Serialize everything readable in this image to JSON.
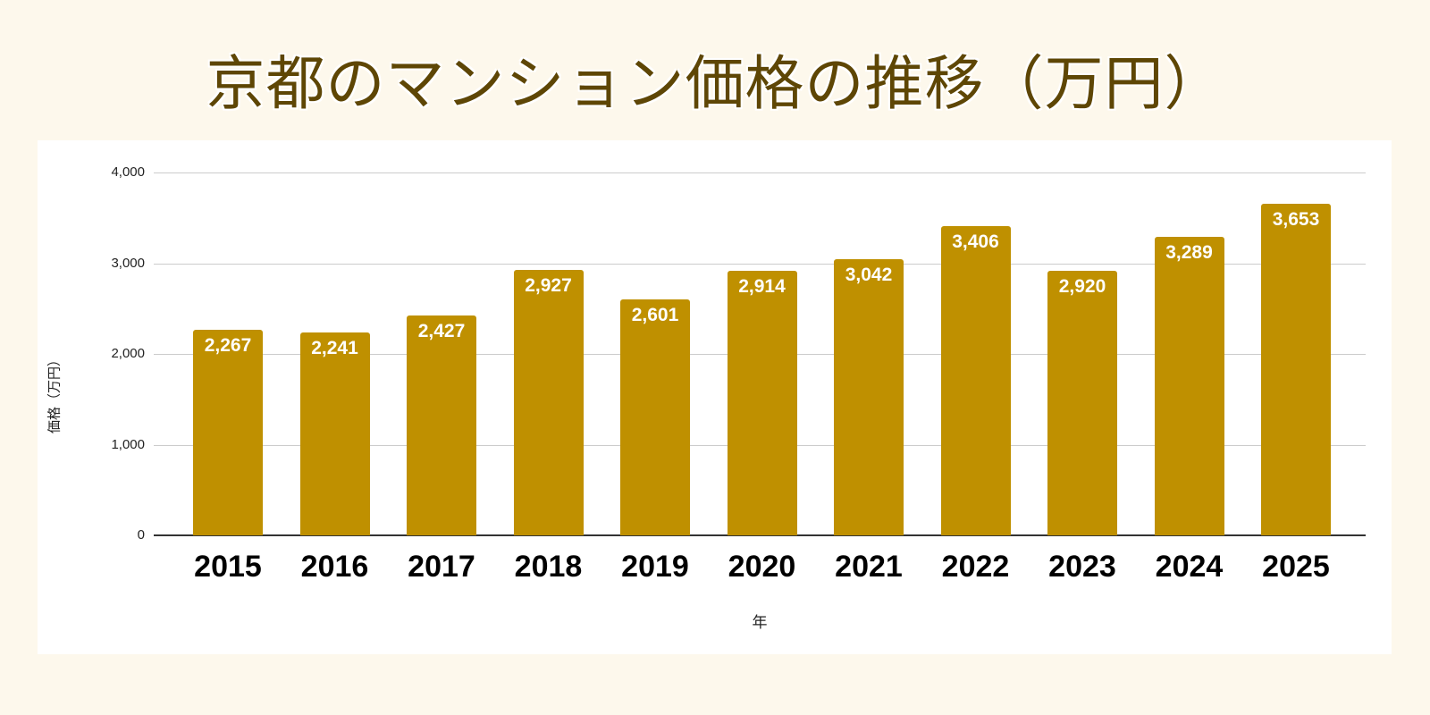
{
  "title": "京都のマンション価格の推移（万円）",
  "colors": {
    "background": "#FDF8EC",
    "card": "#FFFFFF",
    "bar": "#BF9000",
    "title": "#5E4605",
    "gridline": "#CCCCCC"
  },
  "axes": {
    "ylabel": "価格（万円）",
    "xlabel": "年",
    "yticks": [
      "0",
      "1,000",
      "2,000",
      "3,000",
      "4,000"
    ]
  },
  "bars": [
    {
      "year": "2015",
      "label": "2,267"
    },
    {
      "year": "2016",
      "label": "2,241"
    },
    {
      "year": "2017",
      "label": "2,427"
    },
    {
      "year": "2018",
      "label": "2,927"
    },
    {
      "year": "2019",
      "label": "2,601"
    },
    {
      "year": "2020",
      "label": "2,914"
    },
    {
      "year": "2021",
      "label": "3,042"
    },
    {
      "year": "2022",
      "label": "3,406"
    },
    {
      "year": "2023",
      "label": "2,920"
    },
    {
      "year": "2024",
      "label": "3,289"
    },
    {
      "year": "2025",
      "label": "3,653"
    }
  ],
  "chart_data": {
    "type": "bar",
    "title": "京都のマンション価格の推移（万円）",
    "xlabel": "年",
    "ylabel": "価格（万円）",
    "categories": [
      "2015",
      "2016",
      "2017",
      "2018",
      "2019",
      "2020",
      "2021",
      "2022",
      "2023",
      "2024",
      "2025"
    ],
    "values": [
      2267,
      2241,
      2427,
      2927,
      2601,
      2914,
      3042,
      3406,
      2920,
      3289,
      3653
    ],
    "ylim": [
      0,
      4000
    ],
    "yticks": [
      0,
      1000,
      2000,
      3000,
      4000
    ],
    "grid": true,
    "legend": null,
    "data_labels": true,
    "bar_color": "#BF9000"
  }
}
